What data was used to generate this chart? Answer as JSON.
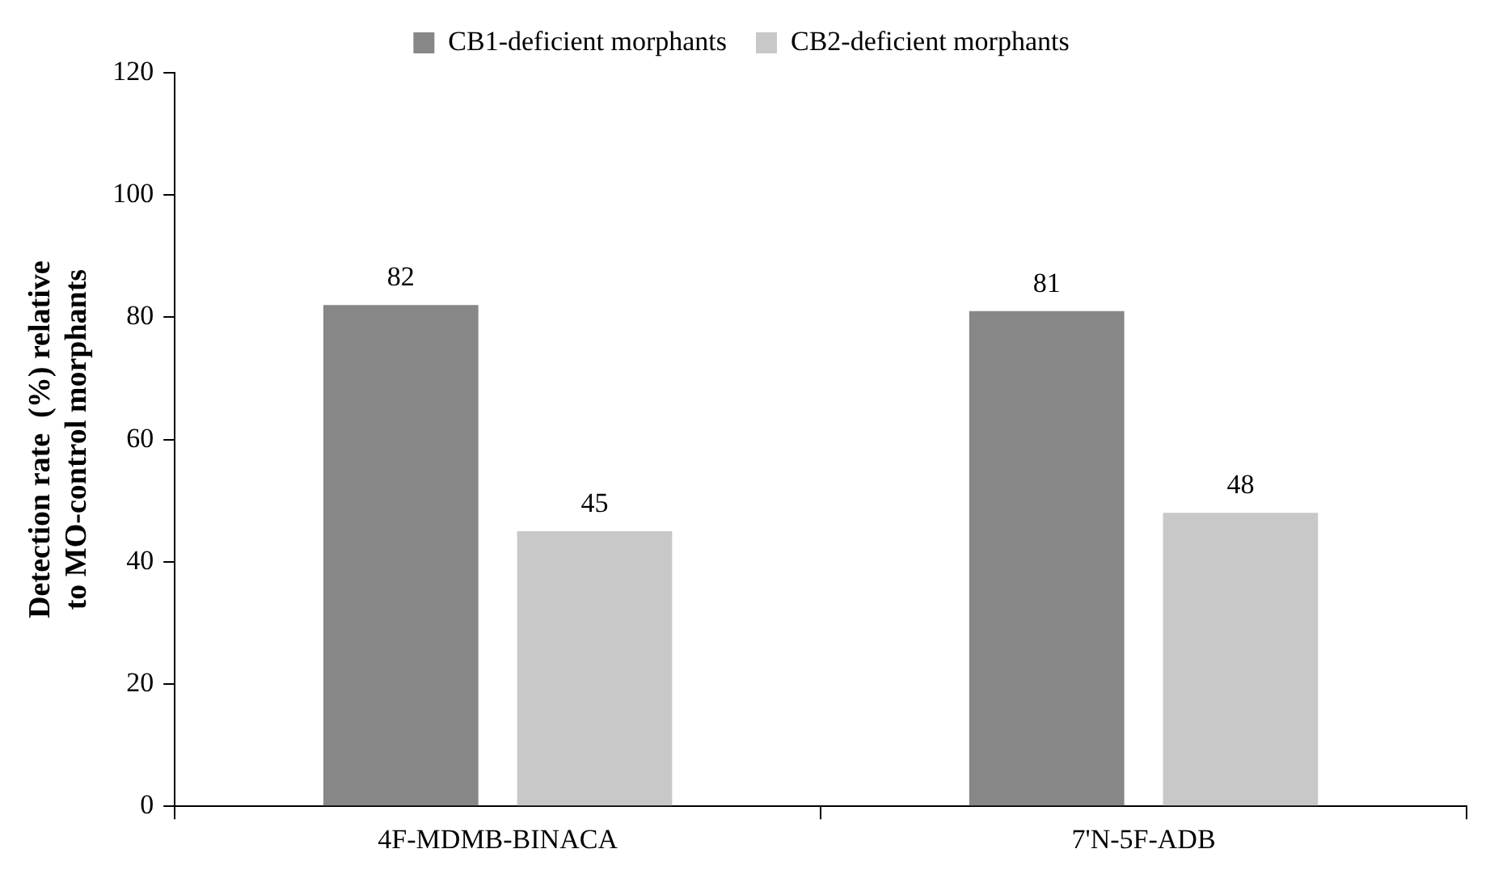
{
  "chart_data": {
    "type": "bar",
    "ylabel": "Detection rate  (%) relative\nto MO-control morphants",
    "categories": [
      "4F-MDMB-BINACA",
      "7'N-5F-ADB"
    ],
    "series": [
      {
        "name": "CB1-deficient morphants",
        "color": "#878787",
        "values": [
          82,
          81
        ]
      },
      {
        "name": "CB2-deficient morphants",
        "color": "#c8c8c8",
        "values": [
          45,
          48
        ]
      }
    ],
    "ylim": [
      0,
      120
    ],
    "yticks": [
      0,
      20,
      40,
      60,
      80,
      100,
      120
    ],
    "grid": false,
    "legend": "top",
    "data_labels": true
  }
}
